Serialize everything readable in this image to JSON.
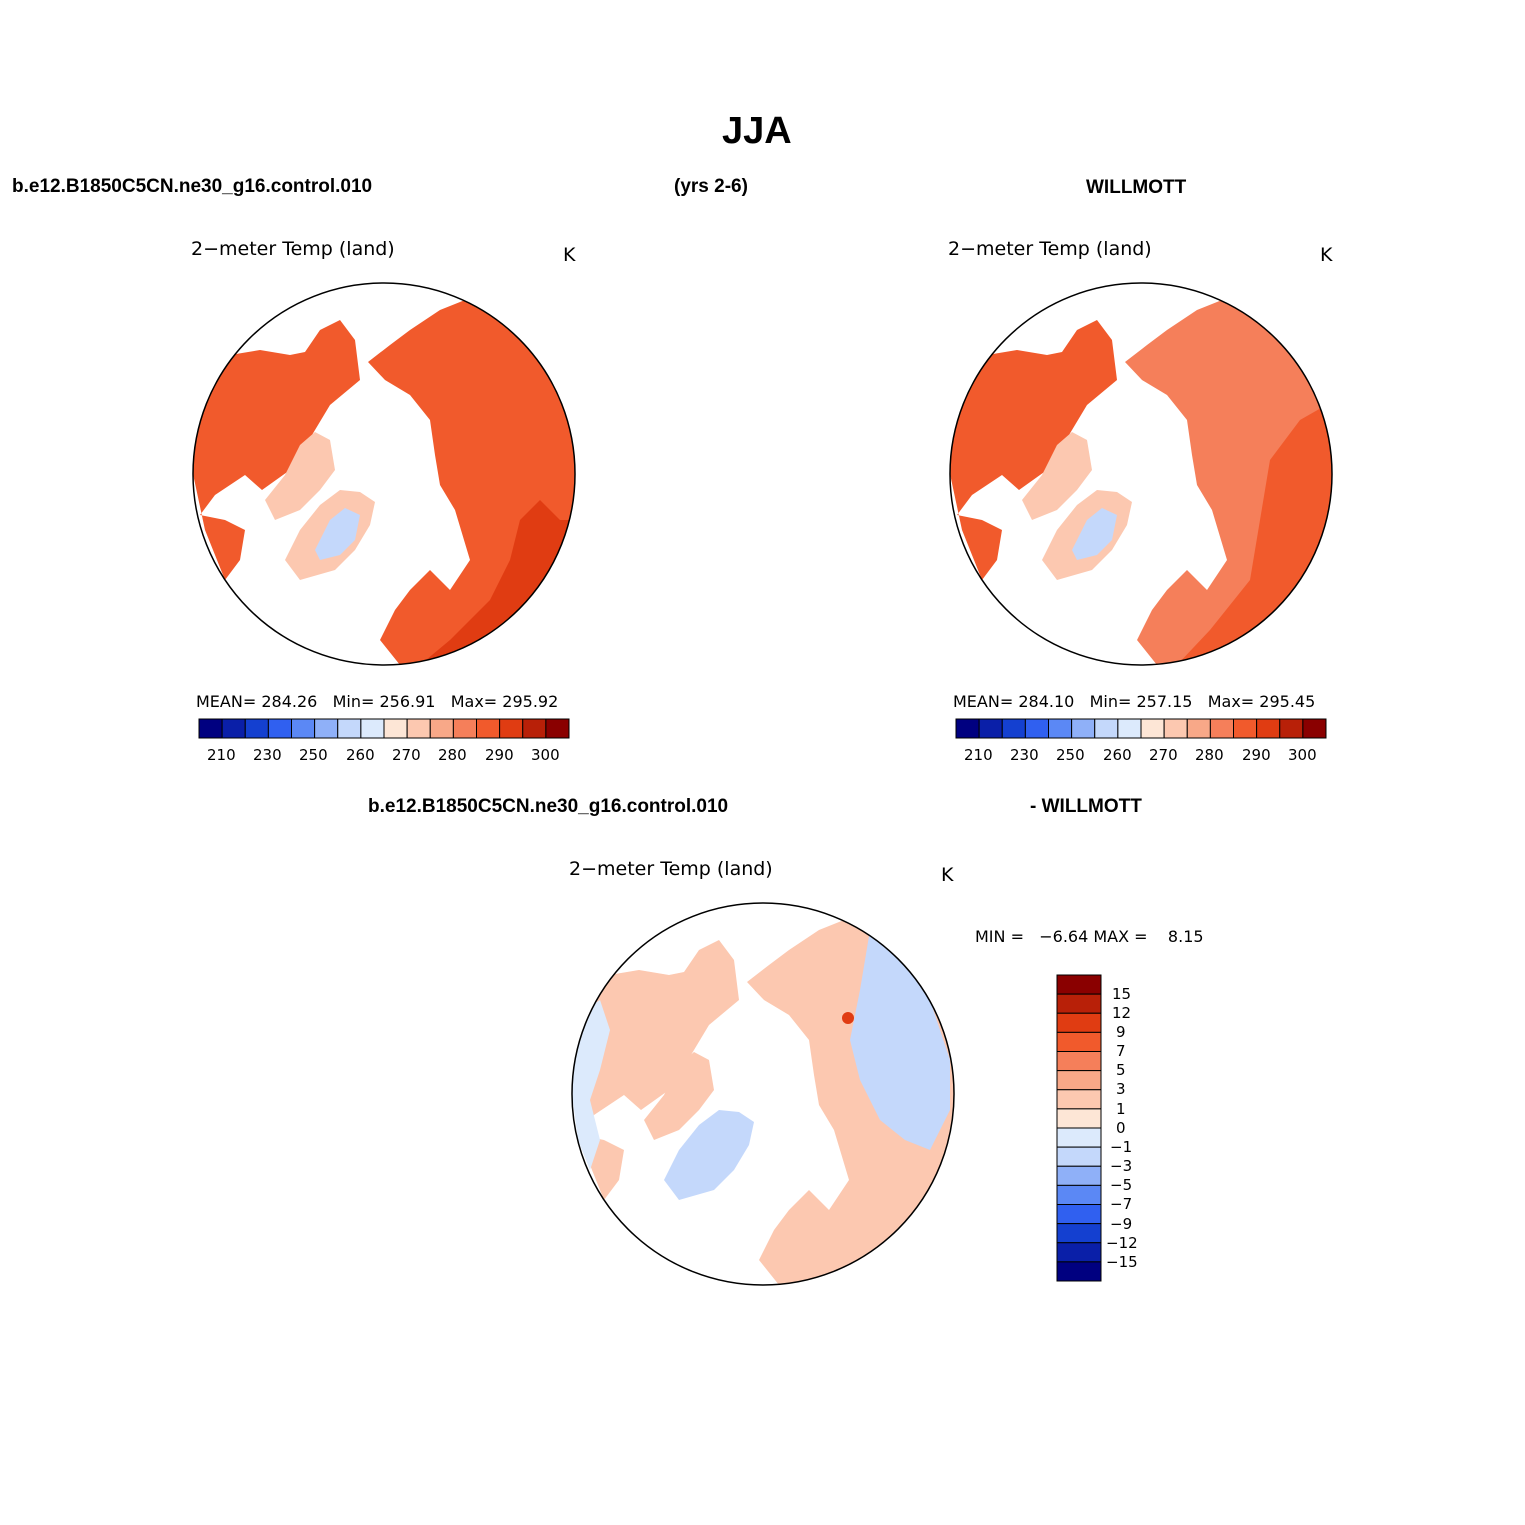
{
  "page": {
    "title": "JJA",
    "case_name": "b.e12.B1850C5CN.ne30_g16.control.010",
    "years": "(yrs 2-6)",
    "obs_name": "WILLMOTT",
    "diff_left": "b.e12.B1850C5CN.ne30_g16.control.010",
    "diff_right": "- WILLMOTT"
  },
  "colors": {
    "abs_levels": [
      "#000080",
      "#0a1fa8",
      "#1440d0",
      "#3060f0",
      "#5b88f5",
      "#8fb0f8",
      "#c4d8fb",
      "#dceafc",
      "#fde6d6",
      "#fcc8b0",
      "#f8a888",
      "#f57f5a",
      "#f15a2c",
      "#e03c12",
      "#b82008",
      "#8a0000"
    ],
    "diff_levels": [
      "#000080",
      "#0a1fa8",
      "#1440d0",
      "#3060f0",
      "#5b88f5",
      "#8fb0f8",
      "#c4d8fb",
      "#dceafc",
      "#fde6d6",
      "#fcc8b0",
      "#f8a888",
      "#f57f5a",
      "#f15a2c",
      "#e03c12",
      "#b82008",
      "#8a0000"
    ]
  },
  "chart_data": [
    {
      "type": "heatmap",
      "projection": "north polar stereographic",
      "title": "2−meter Temp (land)",
      "units": "K",
      "stats": {
        "mean_label": "MEAN=",
        "mean": "284.26",
        "min_label": "Min=",
        "min": "256.91",
        "max_label": "Max=",
        "max": "295.92"
      },
      "colorbar": {
        "orientation": "horizontal",
        "levels": [
          210,
          220,
          230,
          240,
          250,
          255,
          260,
          265,
          270,
          275,
          280,
          285,
          290,
          295,
          300
        ],
        "tick_labels": [
          "210",
          "230",
          "250",
          "260",
          "270",
          "280",
          "290",
          "300"
        ]
      }
    },
    {
      "type": "heatmap",
      "projection": "north polar stereographic",
      "title": "2−meter Temp (land)",
      "units": "K",
      "stats": {
        "mean_label": "MEAN=",
        "mean": "284.10",
        "min_label": "Min=",
        "min": "257.15",
        "max_label": "Max=",
        "max": "295.45"
      },
      "colorbar": {
        "orientation": "horizontal",
        "levels": [
          210,
          220,
          230,
          240,
          250,
          255,
          260,
          265,
          270,
          275,
          280,
          285,
          290,
          295,
          300
        ],
        "tick_labels": [
          "210",
          "230",
          "250",
          "260",
          "270",
          "280",
          "290",
          "300"
        ]
      }
    },
    {
      "type": "heatmap",
      "projection": "north polar stereographic",
      "title": "2−meter Temp (land)",
      "units": "K",
      "stats": {
        "min_label": "MIN =",
        "min": "−6.64",
        "max_label": "MAX =",
        "max": "8.15"
      },
      "colorbar": {
        "orientation": "vertical",
        "levels": [
          -15,
          -12,
          -9,
          -7,
          -5,
          -3,
          -1,
          0,
          1,
          3,
          5,
          7,
          9,
          12,
          15
        ],
        "tick_labels": [
          "15",
          "12",
          "9",
          "7",
          "5",
          "3",
          "1",
          "0",
          "−1",
          "−3",
          "−5",
          "−7",
          "−9",
          "−12",
          "−15"
        ]
      }
    }
  ]
}
